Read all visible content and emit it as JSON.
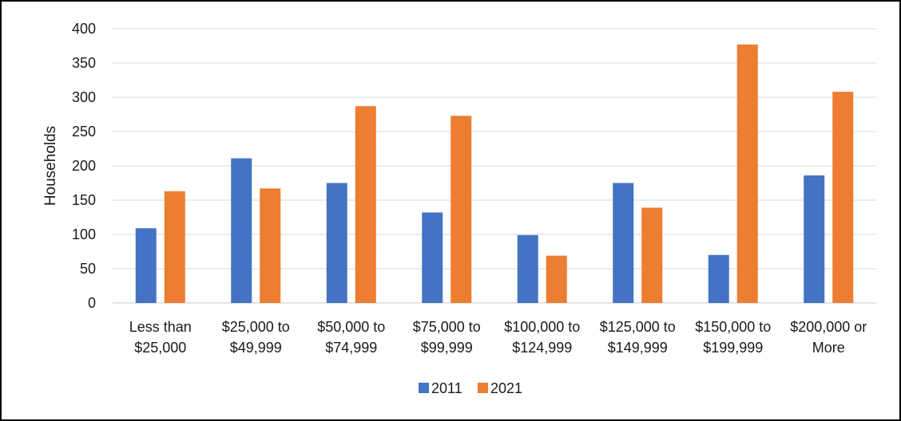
{
  "chart_data": {
    "type": "bar",
    "title": "",
    "xlabel": "",
    "ylabel": "Households",
    "ylim": [
      0,
      400
    ],
    "yticks": [
      0,
      50,
      100,
      150,
      200,
      250,
      300,
      350,
      400
    ],
    "grid": true,
    "legend_position": "bottom",
    "categories": [
      [
        "Less than",
        "$25,000"
      ],
      [
        "$25,000 to",
        "$49,999"
      ],
      [
        "$50,000 to",
        "$74,999"
      ],
      [
        "$75,000 to",
        "$99,999"
      ],
      [
        "$100,000 to",
        "$124,999"
      ],
      [
        "$125,000 to",
        "$149,999"
      ],
      [
        "$150,000 to",
        "$199,999"
      ],
      [
        "$200,000 or",
        "More"
      ]
    ],
    "series": [
      {
        "name": "2011",
        "color": "#4472C4",
        "values": [
          109,
          211,
          175,
          132,
          99,
          175,
          70,
          186
        ]
      },
      {
        "name": "2021",
        "color": "#ED7D31",
        "values": [
          163,
          167,
          287,
          273,
          69,
          139,
          377,
          308
        ]
      }
    ]
  }
}
